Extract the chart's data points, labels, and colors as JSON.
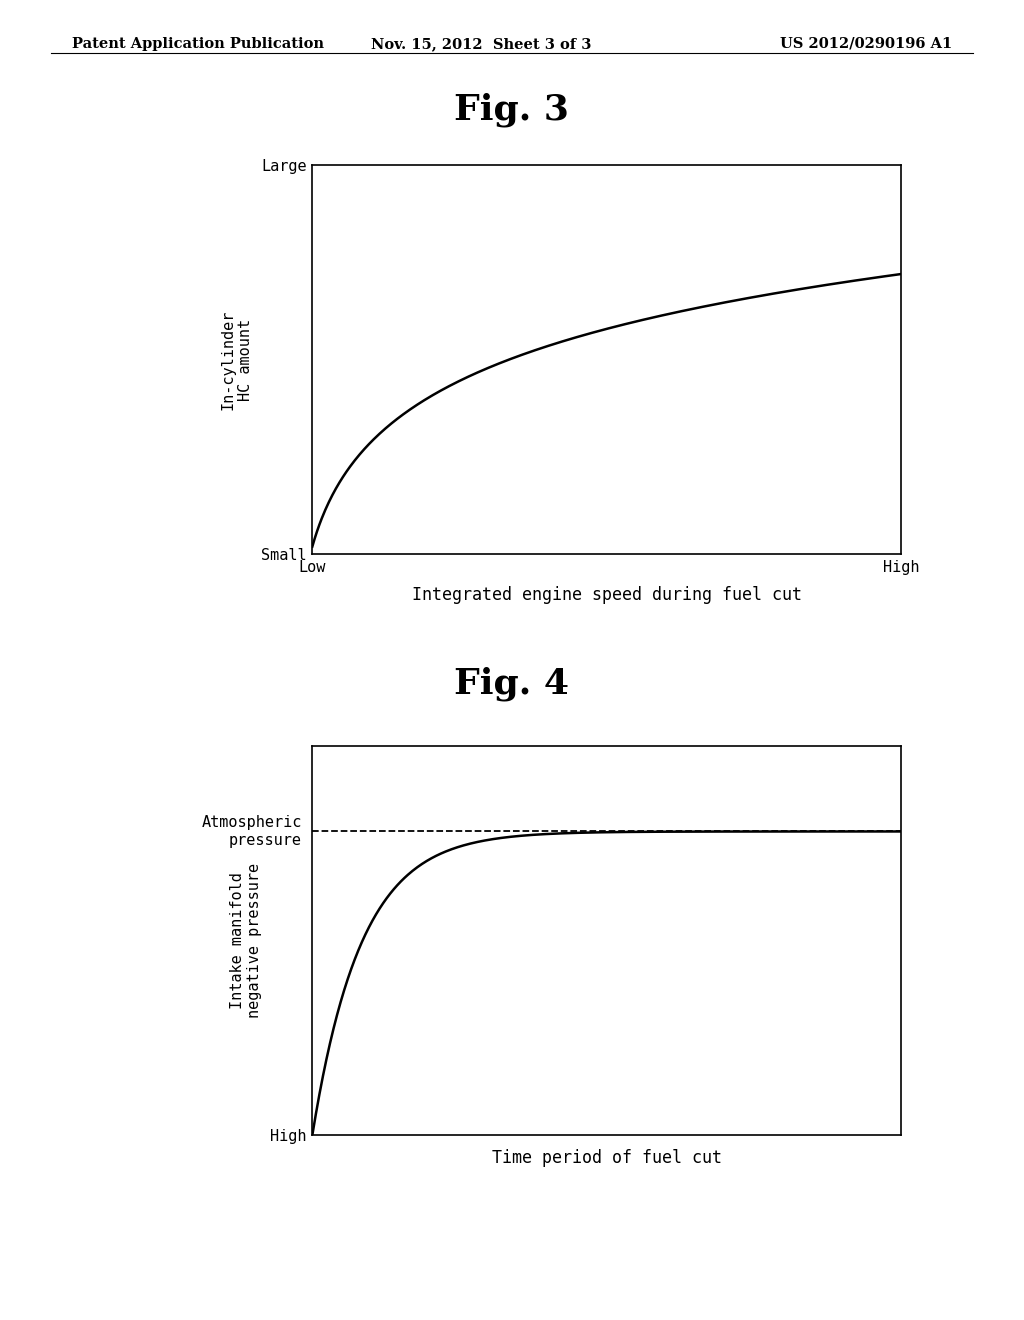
{
  "bg_color": "#ffffff",
  "header_left": "Patent Application Publication",
  "header_center": "Nov. 15, 2012  Sheet 3 of 3",
  "header_right": "US 2012/0290196 A1",
  "header_fontsize": 10.5,
  "fig3_title": "Fig. 3",
  "fig3_title_fontsize": 26,
  "fig3_ylabel": "In-cylinder\nHC amount",
  "fig3_ytick_top": "Large",
  "fig3_ytick_bottom": "Small",
  "fig3_xtick_left": "Low",
  "fig3_xtick_right": "High",
  "fig3_xlabel": "Integrated engine speed during fuel cut",
  "fig4_title": "Fig. 4",
  "fig4_title_fontsize": 26,
  "fig4_ylabel": "Intake manifold\nnegative pressure",
  "fig4_atm_label": "Atmospheric\npressure",
  "fig4_ytick_bottom": "High",
  "fig4_xlabel": "Time period of fuel cut",
  "fig4_atm_level": 0.78,
  "axis_color": "#000000",
  "curve_color": "#000000",
  "curve_linewidth": 1.8,
  "dashed_color": "#000000",
  "dashed_linewidth": 1.3,
  "tick_label_fontsize": 11,
  "axis_label_fontsize": 12,
  "ylabel_fontsize": 11
}
